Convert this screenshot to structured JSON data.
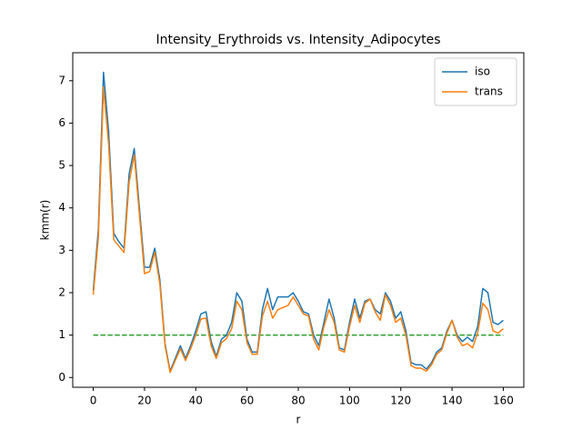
{
  "chart_data": {
    "type": "line",
    "title": "Intensity_Erythroids vs. Intensity_Adipocytes",
    "xlabel": "r",
    "ylabel": "kmm(r)",
    "x": [
      0,
      2,
      4,
      6,
      8,
      10,
      12,
      14,
      16,
      18,
      20,
      22,
      24,
      26,
      28,
      30,
      32,
      34,
      36,
      38,
      40,
      42,
      44,
      46,
      48,
      50,
      52,
      54,
      56,
      58,
      60,
      62,
      64,
      66,
      68,
      70,
      72,
      74,
      76,
      78,
      80,
      82,
      84,
      86,
      88,
      90,
      92,
      94,
      96,
      98,
      100,
      102,
      104,
      106,
      108,
      110,
      112,
      114,
      116,
      118,
      120,
      122,
      124,
      126,
      128,
      130,
      132,
      134,
      136,
      138,
      140,
      142,
      144,
      146,
      148,
      150,
      152,
      154,
      156,
      158,
      160
    ],
    "series": [
      {
        "name": "iso",
        "color": "#1f77b4",
        "values": [
          2.05,
          3.5,
          7.2,
          5.8,
          3.4,
          3.2,
          3.05,
          4.8,
          5.4,
          4.0,
          2.6,
          2.6,
          3.05,
          2.3,
          0.8,
          0.15,
          0.45,
          0.75,
          0.45,
          0.75,
          1.1,
          1.5,
          1.55,
          0.85,
          0.5,
          0.9,
          1.0,
          1.3,
          2.0,
          1.8,
          0.9,
          0.6,
          0.6,
          1.6,
          2.1,
          1.6,
          1.9,
          1.9,
          1.9,
          2.0,
          1.8,
          1.55,
          1.5,
          1.0,
          0.75,
          1.3,
          1.85,
          1.4,
          0.7,
          0.65,
          1.3,
          1.85,
          1.4,
          1.8,
          1.85,
          1.6,
          1.5,
          2.0,
          1.8,
          1.4,
          1.55,
          1.1,
          0.35,
          0.3,
          0.3,
          0.2,
          0.35,
          0.6,
          0.7,
          1.1,
          1.35,
          1.0,
          0.85,
          0.95,
          0.85,
          1.2,
          2.1,
          2.0,
          1.3,
          1.25,
          1.35
        ]
      },
      {
        "name": "trans",
        "color": "#ff7f0e",
        "values": [
          1.95,
          3.3,
          6.85,
          5.5,
          3.25,
          3.1,
          2.95,
          4.6,
          5.25,
          3.85,
          2.45,
          2.5,
          2.95,
          2.2,
          0.75,
          0.12,
          0.4,
          0.68,
          0.4,
          0.68,
          1.0,
          1.38,
          1.4,
          0.75,
          0.45,
          0.82,
          0.92,
          1.15,
          1.8,
          1.6,
          0.82,
          0.55,
          0.55,
          1.45,
          1.8,
          1.4,
          1.6,
          1.65,
          1.7,
          1.9,
          1.7,
          1.5,
          1.45,
          0.9,
          0.65,
          1.2,
          1.6,
          1.3,
          0.65,
          0.6,
          1.2,
          1.7,
          1.3,
          1.75,
          1.85,
          1.55,
          1.35,
          1.95,
          1.7,
          1.3,
          1.4,
          1.0,
          0.28,
          0.22,
          0.22,
          0.15,
          0.3,
          0.55,
          0.65,
          1.05,
          1.35,
          0.95,
          0.75,
          0.8,
          0.7,
          1.05,
          1.75,
          1.6,
          1.1,
          1.05,
          1.15
        ]
      }
    ],
    "reference_line": {
      "x": [
        0,
        160
      ],
      "values": [
        1,
        1
      ],
      "color": "#2ca02c"
    },
    "xlim": [
      -8,
      168
    ],
    "ylim": [
      -0.23,
      7.66
    ],
    "xticks": [
      0,
      20,
      40,
      60,
      80,
      100,
      120,
      140,
      160
    ],
    "yticks": [
      0,
      1,
      2,
      3,
      4,
      5,
      6,
      7
    ],
    "legend": "upper right"
  }
}
